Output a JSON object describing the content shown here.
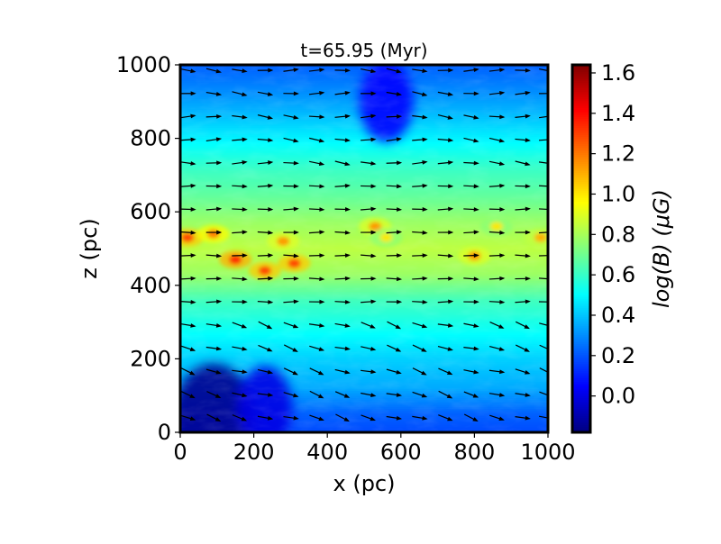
{
  "chart_data": {
    "type": "heatmap",
    "title": "t=65.95 (Myr)",
    "xlabel": "x (pc)",
    "ylabel": "z (pc)",
    "xlim": [
      0,
      1000
    ],
    "ylim": [
      0,
      1000
    ],
    "xticks": [
      0,
      200,
      400,
      600,
      800,
      1000
    ],
    "yticks": [
      0,
      200,
      400,
      600,
      800,
      1000
    ],
    "colorbar": {
      "label": "log(B) (μG)",
      "range": [
        -0.18,
        1.64
      ],
      "ticks": [
        0.0,
        0.2,
        0.4,
        0.6,
        0.8,
        1.0,
        1.2,
        1.4,
        1.6
      ],
      "ticklabels": [
        "0.0",
        "0.2",
        "0.4",
        "0.6",
        "0.8",
        "1.0",
        "1.2",
        "1.4",
        "1.6"
      ],
      "colormap": "jet"
    },
    "field_profile_z": [
      {
        "z": 0,
        "logB": 0.18
      },
      {
        "z": 50,
        "logB": 0.22
      },
      {
        "z": 120,
        "logB": 0.35
      },
      {
        "z": 200,
        "logB": 0.42
      },
      {
        "z": 280,
        "logB": 0.52
      },
      {
        "z": 360,
        "logB": 0.62
      },
      {
        "z": 430,
        "logB": 0.78
      },
      {
        "z": 500,
        "logB": 0.84
      },
      {
        "z": 570,
        "logB": 0.78
      },
      {
        "z": 640,
        "logB": 0.68
      },
      {
        "z": 720,
        "logB": 0.6
      },
      {
        "z": 800,
        "logB": 0.48
      },
      {
        "z": 880,
        "logB": 0.36
      },
      {
        "z": 950,
        "logB": 0.27
      },
      {
        "z": 1000,
        "logB": 0.22
      }
    ],
    "hotspots": [
      {
        "x": 20,
        "z": 530,
        "logB": 1.3
      },
      {
        "x": 90,
        "z": 540,
        "logB": 1.2
      },
      {
        "x": 150,
        "z": 470,
        "logB": 1.35
      },
      {
        "x": 230,
        "z": 440,
        "logB": 1.3
      },
      {
        "x": 280,
        "z": 520,
        "logB": 1.15
      },
      {
        "x": 310,
        "z": 460,
        "logB": 1.3
      },
      {
        "x": 530,
        "z": 560,
        "logB": 1.15
      },
      {
        "x": 560,
        "z": 530,
        "logB": 1.0
      },
      {
        "x": 800,
        "z": 480,
        "logB": 1.15
      },
      {
        "x": 860,
        "z": 560,
        "logB": 1.0
      },
      {
        "x": 980,
        "z": 530,
        "logB": 1.1
      }
    ],
    "low_regions": [
      {
        "x": 90,
        "z": 40,
        "logB": -0.15
      },
      {
        "x": 230,
        "z": 70,
        "logB": 0.0
      },
      {
        "x": 560,
        "z": 900,
        "logB": 0.05
      }
    ],
    "vector_field": {
      "quantity": "B direction",
      "x": [
        20,
        90,
        160,
        230,
        300,
        370,
        440,
        510,
        580,
        650,
        720,
        790,
        860,
        930,
        995
      ],
      "z": [
        40,
        103,
        166,
        229,
        292,
        355,
        418,
        481,
        544,
        607,
        670,
        733,
        796,
        859,
        922,
        985
      ]
    }
  }
}
